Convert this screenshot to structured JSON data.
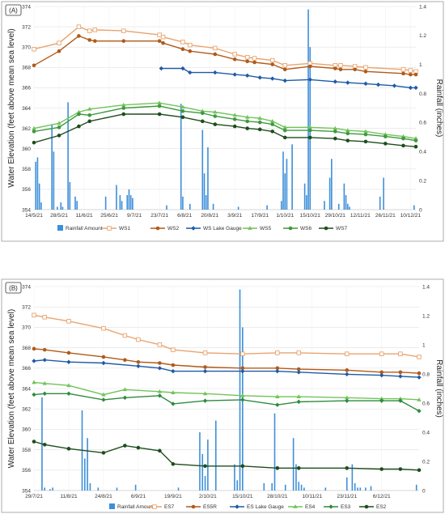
{
  "chart_data": [
    {
      "type": "line",
      "panel_label": "(A)",
      "ylabel": "Water Elevation (feet above mean sea level)",
      "y2label": "Rainfall (inches)",
      "ylim": [
        354,
        374
      ],
      "y2lim": [
        0,
        1.4
      ],
      "xlim": [
        "2021-05-14",
        "2021-12-13"
      ],
      "yticks": [
        354,
        356,
        358,
        360,
        362,
        364,
        366,
        368,
        370,
        372,
        374
      ],
      "y2ticks": [
        0,
        0.2,
        0.4,
        0.6,
        0.8,
        1,
        1.2,
        1.4
      ],
      "xticks": [
        {
          "date": "2021-05-14",
          "label": "14/5/21"
        },
        {
          "date": "2021-05-28",
          "label": "28/5/21"
        },
        {
          "date": "2021-06-11",
          "label": "11/6/21"
        },
        {
          "date": "2021-06-25",
          "label": "25/6/21"
        },
        {
          "date": "2021-07-09",
          "label": "9/7/21"
        },
        {
          "date": "2021-07-23",
          "label": "23/7/21"
        },
        {
          "date": "2021-08-06",
          "label": "6/8/21"
        },
        {
          "date": "2021-08-20",
          "label": "20/8/21"
        },
        {
          "date": "2021-09-03",
          "label": "3/9/21"
        },
        {
          "date": "2021-09-17",
          "label": "17/9/21"
        },
        {
          "date": "2021-10-01",
          "label": "1/10/21"
        },
        {
          "date": "2021-10-15",
          "label": "15/10/21"
        },
        {
          "date": "2021-10-29",
          "label": "29/10/21"
        },
        {
          "date": "2021-11-12",
          "label": "12/11/21"
        },
        {
          "date": "2021-11-26",
          "label": "26/11/21"
        },
        {
          "date": "2021-12-10",
          "label": "10/12/21"
        }
      ],
      "legend_position": "bottom",
      "rainfall": {
        "name": "Rainfall Amount",
        "color": "#3d8fd9",
        "dates": [
          "2021-05-15",
          "2021-05-16",
          "2021-05-17",
          "2021-05-18",
          "2021-05-24",
          "2021-05-25",
          "2021-05-27",
          "2021-05-29",
          "2021-05-30",
          "2021-06-02",
          "2021-06-03",
          "2021-06-06",
          "2021-06-07",
          "2021-06-23",
          "2021-06-29",
          "2021-07-01",
          "2021-07-02",
          "2021-07-05",
          "2021-07-06",
          "2021-07-07",
          "2021-07-08",
          "2021-07-27",
          "2021-08-04",
          "2021-08-05",
          "2021-08-09",
          "2021-08-16",
          "2021-08-17",
          "2021-08-18",
          "2021-08-19",
          "2021-08-22",
          "2021-09-05",
          "2021-09-21",
          "2021-09-29",
          "2021-09-30",
          "2021-10-01",
          "2021-10-02",
          "2021-10-05",
          "2021-10-12",
          "2021-10-13",
          "2021-10-14",
          "2021-10-15",
          "2021-10-23",
          "2021-10-26",
          "2021-10-27",
          "2021-10-31",
          "2021-11-03",
          "2021-11-04",
          "2021-11-05",
          "2021-11-06",
          "2021-11-23",
          "2021-11-25",
          "2021-12-12"
        ],
        "values": [
          0.33,
          0.36,
          0.18,
          0.05,
          0.59,
          0.4,
          0.02,
          0.05,
          0.02,
          0.74,
          0.19,
          0.09,
          0.06,
          0.09,
          0.17,
          0.1,
          0.06,
          0.1,
          0.14,
          0.1,
          0.08,
          0.03,
          0.73,
          0.09,
          0.04,
          0.55,
          0.25,
          0.1,
          0.43,
          0.04,
          0.02,
          0.03,
          0.06,
          0.4,
          0.25,
          0.35,
          0.45,
          0.18,
          0.1,
          1.38,
          1.12,
          0.06,
          0.22,
          0.35,
          0.04,
          0.18,
          0.1,
          0.04,
          0.02,
          0.09,
          0.22,
          0.03
        ]
      },
      "series": [
        {
          "name": "WS1",
          "color": "#e8a46f",
          "marker": "square-open",
          "x": [
            "2021-05-14",
            "2021-05-28",
            "2021-06-08",
            "2021-06-14",
            "2021-06-17",
            "2021-07-03",
            "2021-07-23",
            "2021-07-25",
            "2021-08-05",
            "2021-08-09",
            "2021-08-23",
            "2021-09-03",
            "2021-09-10",
            "2021-09-14",
            "2021-09-24",
            "2021-10-01",
            "2021-10-15",
            "2021-10-29",
            "2021-11-01",
            "2021-11-09",
            "2021-11-15",
            "2021-12-06",
            "2021-12-10",
            "2021-12-13"
          ],
          "values": [
            369.8,
            370.4,
            372.0,
            371.6,
            371.7,
            371.6,
            371.2,
            371.0,
            370.5,
            370.2,
            369.9,
            369.3,
            369.0,
            368.9,
            368.7,
            368.2,
            368.4,
            368.2,
            368.2,
            368.1,
            368.0,
            367.8,
            367.7,
            367.6
          ]
        },
        {
          "name": "WS2",
          "color": "#b05a1a",
          "marker": "circle",
          "x": [
            "2021-05-14",
            "2021-05-28",
            "2021-06-08",
            "2021-06-14",
            "2021-06-17",
            "2021-07-03",
            "2021-07-23",
            "2021-07-25",
            "2021-08-05",
            "2021-08-09",
            "2021-08-23",
            "2021-09-03",
            "2021-09-10",
            "2021-09-14",
            "2021-09-24",
            "2021-10-01",
            "2021-10-15",
            "2021-10-29",
            "2021-11-01",
            "2021-11-09",
            "2021-11-15",
            "2021-12-06",
            "2021-12-10",
            "2021-12-13"
          ],
          "values": [
            368.2,
            369.6,
            371.1,
            370.7,
            370.6,
            370.6,
            370.6,
            370.4,
            369.8,
            369.6,
            369.3,
            368.8,
            368.6,
            368.5,
            368.3,
            367.8,
            368.1,
            367.9,
            367.8,
            367.8,
            367.6,
            367.4,
            367.3,
            367.3
          ]
        },
        {
          "name": "WS Lake Gauge",
          "color": "#1f5aa6",
          "marker": "diamond",
          "x": [
            "2021-07-24",
            "2021-08-05",
            "2021-08-09",
            "2021-08-23",
            "2021-09-03",
            "2021-09-10",
            "2021-09-17",
            "2021-09-24",
            "2021-10-01",
            "2021-10-15",
            "2021-10-29",
            "2021-11-05",
            "2021-11-15",
            "2021-11-22",
            "2021-12-01",
            "2021-12-10",
            "2021-12-13"
          ],
          "values": [
            367.9,
            367.9,
            367.5,
            367.5,
            367.3,
            367.2,
            367.0,
            366.9,
            366.7,
            366.8,
            366.6,
            366.5,
            366.4,
            366.3,
            366.2,
            366.0,
            366.0
          ]
        },
        {
          "name": "WS5",
          "color": "#72c35a",
          "marker": "triangle",
          "x": [
            "2021-05-14",
            "2021-05-28",
            "2021-06-08",
            "2021-06-14",
            "2021-07-03",
            "2021-07-23",
            "2021-08-05",
            "2021-08-16",
            "2021-08-23",
            "2021-09-03",
            "2021-09-10",
            "2021-09-17",
            "2021-09-24",
            "2021-10-01",
            "2021-10-15",
            "2021-10-29",
            "2021-11-05",
            "2021-11-15",
            "2021-11-26",
            "2021-12-06",
            "2021-12-13"
          ],
          "values": [
            362.0,
            362.5,
            363.6,
            363.9,
            364.3,
            364.5,
            364.1,
            363.7,
            363.6,
            363.3,
            363.1,
            363.0,
            362.7,
            362.1,
            362.1,
            362.0,
            361.8,
            361.7,
            361.4,
            361.2,
            361.0
          ]
        },
        {
          "name": "WS6",
          "color": "#3e9a3e",
          "marker": "circle",
          "x": [
            "2021-05-14",
            "2021-05-28",
            "2021-06-08",
            "2021-06-14",
            "2021-07-03",
            "2021-07-23",
            "2021-08-05",
            "2021-08-16",
            "2021-08-23",
            "2021-09-03",
            "2021-09-10",
            "2021-09-17",
            "2021-09-24",
            "2021-10-01",
            "2021-10-15",
            "2021-10-29",
            "2021-11-05",
            "2021-11-15",
            "2021-11-26",
            "2021-12-06",
            "2021-12-13"
          ],
          "values": [
            361.7,
            362.1,
            363.4,
            363.3,
            364.0,
            364.2,
            363.7,
            363.5,
            363.2,
            362.9,
            362.7,
            362.6,
            362.4,
            361.8,
            361.8,
            361.7,
            361.5,
            361.4,
            361.2,
            361.0,
            360.8
          ]
        },
        {
          "name": "WS7",
          "color": "#1e4d1e",
          "marker": "circle",
          "x": [
            "2021-05-14",
            "2021-05-28",
            "2021-06-08",
            "2021-06-14",
            "2021-07-03",
            "2021-07-23",
            "2021-08-05",
            "2021-08-16",
            "2021-08-23",
            "2021-09-03",
            "2021-09-10",
            "2021-09-17",
            "2021-09-24",
            "2021-10-01",
            "2021-10-15",
            "2021-10-29",
            "2021-11-05",
            "2021-11-15",
            "2021-11-26",
            "2021-12-06",
            "2021-12-13"
          ],
          "values": [
            360.6,
            361.3,
            362.2,
            362.7,
            363.4,
            363.4,
            363.1,
            362.7,
            362.4,
            362.2,
            362.0,
            361.9,
            361.7,
            361.1,
            361.1,
            361.0,
            360.8,
            360.7,
            360.5,
            360.3,
            360.2
          ]
        }
      ]
    },
    {
      "type": "line",
      "panel_label": "(B)",
      "ylabel": "Water Elevation (feet above mean sea level)",
      "y2label": "Rainfall (inches)",
      "ylim": [
        354,
        374
      ],
      "y2lim": [
        0,
        1.4
      ],
      "xlim": [
        "2021-07-29",
        "2021-12-20"
      ],
      "yticks": [
        354,
        356,
        358,
        360,
        362,
        364,
        366,
        368,
        370,
        372,
        374
      ],
      "y2ticks": [
        0,
        0.2,
        0.4,
        0.6,
        0.8,
        1,
        1.2,
        1.4
      ],
      "xticks": [
        {
          "date": "2021-07-29",
          "label": "29/7/21"
        },
        {
          "date": "2021-08-11",
          "label": "11/8/21"
        },
        {
          "date": "2021-08-24",
          "label": "24/8/21"
        },
        {
          "date": "2021-09-06",
          "label": "6/9/21"
        },
        {
          "date": "2021-09-19",
          "label": "19/9/21"
        },
        {
          "date": "2021-10-02",
          "label": "2/10/21"
        },
        {
          "date": "2021-10-15",
          "label": "15/10/21"
        },
        {
          "date": "2021-10-28",
          "label": "28/10/21"
        },
        {
          "date": "2021-11-10",
          "label": "10/11/21"
        },
        {
          "date": "2021-11-23",
          "label": "23/11/21"
        },
        {
          "date": "2021-12-06",
          "label": "6/12/21"
        }
      ],
      "legend_position": "bottom",
      "rainfall": {
        "name": "Rainfall Amount",
        "color": "#3d8fd9",
        "dates": [
          "2021-08-01",
          "2021-08-02",
          "2021-08-04",
          "2021-08-05",
          "2021-08-16",
          "2021-08-17",
          "2021-08-18",
          "2021-08-19",
          "2021-08-22",
          "2021-08-29",
          "2021-09-05",
          "2021-09-21",
          "2021-09-29",
          "2021-09-30",
          "2021-10-01",
          "2021-10-02",
          "2021-10-05",
          "2021-10-12",
          "2021-10-13",
          "2021-10-14",
          "2021-10-15",
          "2021-10-23",
          "2021-10-26",
          "2021-10-27",
          "2021-10-31",
          "2021-11-03",
          "2021-11-04",
          "2021-11-05",
          "2021-11-06",
          "2021-11-07",
          "2021-11-15",
          "2021-11-23",
          "2021-11-25",
          "2021-11-26",
          "2021-11-27",
          "2021-11-28",
          "2021-11-30",
          "2021-12-02",
          "2021-12-19"
        ],
        "values": [
          0.64,
          0.02,
          0.01,
          0.02,
          0.55,
          0.22,
          0.36,
          0.05,
          0.02,
          0.02,
          0.04,
          0.02,
          0.4,
          0.25,
          0.1,
          0.35,
          0.48,
          0.18,
          0.07,
          1.38,
          1.12,
          0.05,
          0.05,
          0.53,
          0.04,
          0.36,
          0.18,
          0.06,
          0.04,
          0.02,
          0.02,
          0.09,
          0.18,
          0.05,
          0.02,
          0.02,
          0.02,
          0.03,
          0.04
        ]
      },
      "series": [
        {
          "name": "ES7",
          "color": "#e8a46f",
          "marker": "square-open",
          "x": [
            "2021-07-29",
            "2021-08-02",
            "2021-08-11",
            "2021-08-24",
            "2021-09-01",
            "2021-09-06",
            "2021-09-14",
            "2021-09-19",
            "2021-10-01",
            "2021-10-15",
            "2021-10-28",
            "2021-11-05",
            "2021-11-23",
            "2021-12-06",
            "2021-12-13",
            "2021-12-20"
          ],
          "values": [
            371.2,
            371.0,
            370.6,
            369.9,
            369.2,
            368.8,
            368.3,
            367.8,
            367.5,
            367.4,
            367.5,
            367.5,
            367.4,
            367.4,
            367.4,
            367.1
          ]
        },
        {
          "name": "ES5R",
          "color": "#b05a1a",
          "marker": "circle",
          "x": [
            "2021-07-29",
            "2021-08-02",
            "2021-08-11",
            "2021-08-24",
            "2021-09-01",
            "2021-09-06",
            "2021-09-14",
            "2021-09-19",
            "2021-10-01",
            "2021-10-15",
            "2021-10-28",
            "2021-11-05",
            "2021-11-23",
            "2021-12-06",
            "2021-12-13",
            "2021-12-20"
          ],
          "values": [
            367.9,
            367.8,
            367.5,
            367.1,
            366.8,
            366.6,
            366.5,
            366.3,
            366.1,
            366.0,
            366.0,
            365.9,
            365.8,
            365.6,
            365.6,
            365.5
          ]
        },
        {
          "name": "ES Lake Gauge",
          "color": "#1f5aa6",
          "marker": "diamond",
          "x": [
            "2021-07-29",
            "2021-08-02",
            "2021-08-11",
            "2021-08-24",
            "2021-09-06",
            "2021-09-14",
            "2021-09-19",
            "2021-10-01",
            "2021-10-15",
            "2021-10-28",
            "2021-11-05",
            "2021-11-23",
            "2021-12-06",
            "2021-12-13",
            "2021-12-20"
          ],
          "values": [
            366.7,
            366.8,
            366.6,
            366.5,
            366.2,
            366.0,
            365.7,
            365.7,
            365.7,
            365.7,
            365.6,
            365.4,
            365.3,
            365.2,
            365.1
          ]
        },
        {
          "name": "ES4",
          "color": "#72c35a",
          "marker": "triangle",
          "x": [
            "2021-07-29",
            "2021-08-02",
            "2021-08-11",
            "2021-08-24",
            "2021-09-01",
            "2021-09-14",
            "2021-09-19",
            "2021-10-01",
            "2021-10-15",
            "2021-10-28",
            "2021-11-05",
            "2021-11-23",
            "2021-12-06",
            "2021-12-13",
            "2021-12-20"
          ],
          "values": [
            364.6,
            364.5,
            364.3,
            363.4,
            363.9,
            363.7,
            363.6,
            363.5,
            363.3,
            363.2,
            363.2,
            363.1,
            363.0,
            363.0,
            362.9
          ]
        },
        {
          "name": "ES3",
          "color": "#2e8b3e",
          "marker": "diamond",
          "x": [
            "2021-07-29",
            "2021-08-02",
            "2021-08-11",
            "2021-08-24",
            "2021-09-01",
            "2021-09-14",
            "2021-09-19",
            "2021-10-01",
            "2021-10-15",
            "2021-10-28",
            "2021-11-05",
            "2021-11-23",
            "2021-12-06",
            "2021-12-13",
            "2021-12-20"
          ],
          "values": [
            363.4,
            363.5,
            363.5,
            362.9,
            363.1,
            363.3,
            362.5,
            362.8,
            362.9,
            362.4,
            362.7,
            362.8,
            362.8,
            362.8,
            361.8
          ]
        },
        {
          "name": "ES2",
          "color": "#1e4d1e",
          "marker": "circle",
          "x": [
            "2021-07-29",
            "2021-08-02",
            "2021-08-11",
            "2021-08-24",
            "2021-09-01",
            "2021-09-06",
            "2021-09-14",
            "2021-09-19",
            "2021-10-01",
            "2021-10-15",
            "2021-10-28",
            "2021-11-05",
            "2021-11-23",
            "2021-12-06",
            "2021-12-13",
            "2021-12-20"
          ],
          "values": [
            358.8,
            358.5,
            358.1,
            357.7,
            358.4,
            358.2,
            357.9,
            356.6,
            356.4,
            356.4,
            356.2,
            356.2,
            356.2,
            356.1,
            356.1,
            356.0
          ]
        }
      ]
    }
  ]
}
